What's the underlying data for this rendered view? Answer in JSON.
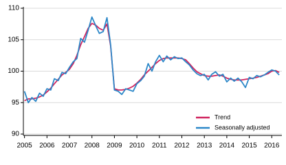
{
  "chart_data": {
    "type": "line",
    "x": [
      2005.0,
      2005.17,
      2005.33,
      2005.5,
      2005.67,
      2005.83,
      2006.0,
      2006.17,
      2006.33,
      2006.5,
      2006.67,
      2006.83,
      2007.0,
      2007.17,
      2007.33,
      2007.5,
      2007.67,
      2007.83,
      2008.0,
      2008.17,
      2008.33,
      2008.5,
      2008.67,
      2008.83,
      2009.0,
      2009.17,
      2009.33,
      2009.5,
      2009.67,
      2009.83,
      2010.0,
      2010.17,
      2010.33,
      2010.5,
      2010.67,
      2010.83,
      2011.0,
      2011.17,
      2011.33,
      2011.5,
      2011.67,
      2011.83,
      2012.0,
      2012.17,
      2012.33,
      2012.5,
      2012.67,
      2012.83,
      2013.0,
      2013.17,
      2013.33,
      2013.5,
      2013.67,
      2013.83,
      2014.0,
      2014.17,
      2014.33,
      2014.5,
      2014.67,
      2014.83,
      2015.0,
      2015.17,
      2015.33,
      2015.5,
      2015.67,
      2015.83,
      2016.0,
      2016.17,
      2016.33
    ],
    "series": [
      {
        "name": "Trend",
        "color": "#d0245f",
        "values": [
          95.3,
          95.6,
          95.6,
          95.7,
          95.9,
          96.2,
          96.7,
          97.3,
          98.0,
          98.7,
          99.4,
          99.8,
          100.3,
          101.2,
          102.5,
          104.2,
          105.5,
          106.8,
          107.6,
          107.3,
          106.8,
          106.5,
          107.5,
          104.0,
          97.2,
          97.0,
          97.0,
          97.1,
          97.3,
          97.6,
          98.1,
          98.7,
          99.4,
          100.0,
          100.6,
          101.2,
          101.7,
          102.0,
          102.1,
          102.1,
          102.1,
          102.1,
          102.0,
          101.8,
          101.2,
          100.5,
          99.9,
          99.6,
          99.3,
          99.2,
          99.2,
          99.3,
          99.4,
          99.2,
          98.9,
          98.7,
          98.6,
          98.6,
          98.6,
          98.7,
          98.8,
          98.9,
          99.0,
          99.2,
          99.4,
          99.6,
          100.0,
          100.1,
          99.8
        ]
      },
      {
        "name": "Seasonally adjusted",
        "color": "#2b87c8",
        "values": [
          96.8,
          95.0,
          95.8,
          95.2,
          96.5,
          96.0,
          97.2,
          97.0,
          98.8,
          98.5,
          99.8,
          99.6,
          100.6,
          101.5,
          102.0,
          105.2,
          104.6,
          106.5,
          108.6,
          107.2,
          106.0,
          106.3,
          108.5,
          104.2,
          97.0,
          96.8,
          96.3,
          97.2,
          97.0,
          96.8,
          98.0,
          98.5,
          99.2,
          101.2,
          100.0,
          101.5,
          102.5,
          101.5,
          102.4,
          101.8,
          102.3,
          102.0,
          102.1,
          101.5,
          101.0,
          100.2,
          99.6,
          99.3,
          99.5,
          98.6,
          99.5,
          99.9,
          99.2,
          99.5,
          98.3,
          98.9,
          98.4,
          98.9,
          98.3,
          97.4,
          99.0,
          98.8,
          99.3,
          99.1,
          99.4,
          99.8,
          100.2,
          100.0,
          99.4
        ]
      }
    ],
    "xlim": [
      2004.95,
      2016.45
    ],
    "xticks": [
      2005,
      2006,
      2007,
      2008,
      2009,
      2010,
      2011,
      2012,
      2013,
      2014,
      2015,
      2016
    ],
    "ylim": [
      90,
      110
    ],
    "yticks": [
      90,
      95,
      100,
      105,
      110
    ],
    "grid": true,
    "legend": "lower-right"
  }
}
